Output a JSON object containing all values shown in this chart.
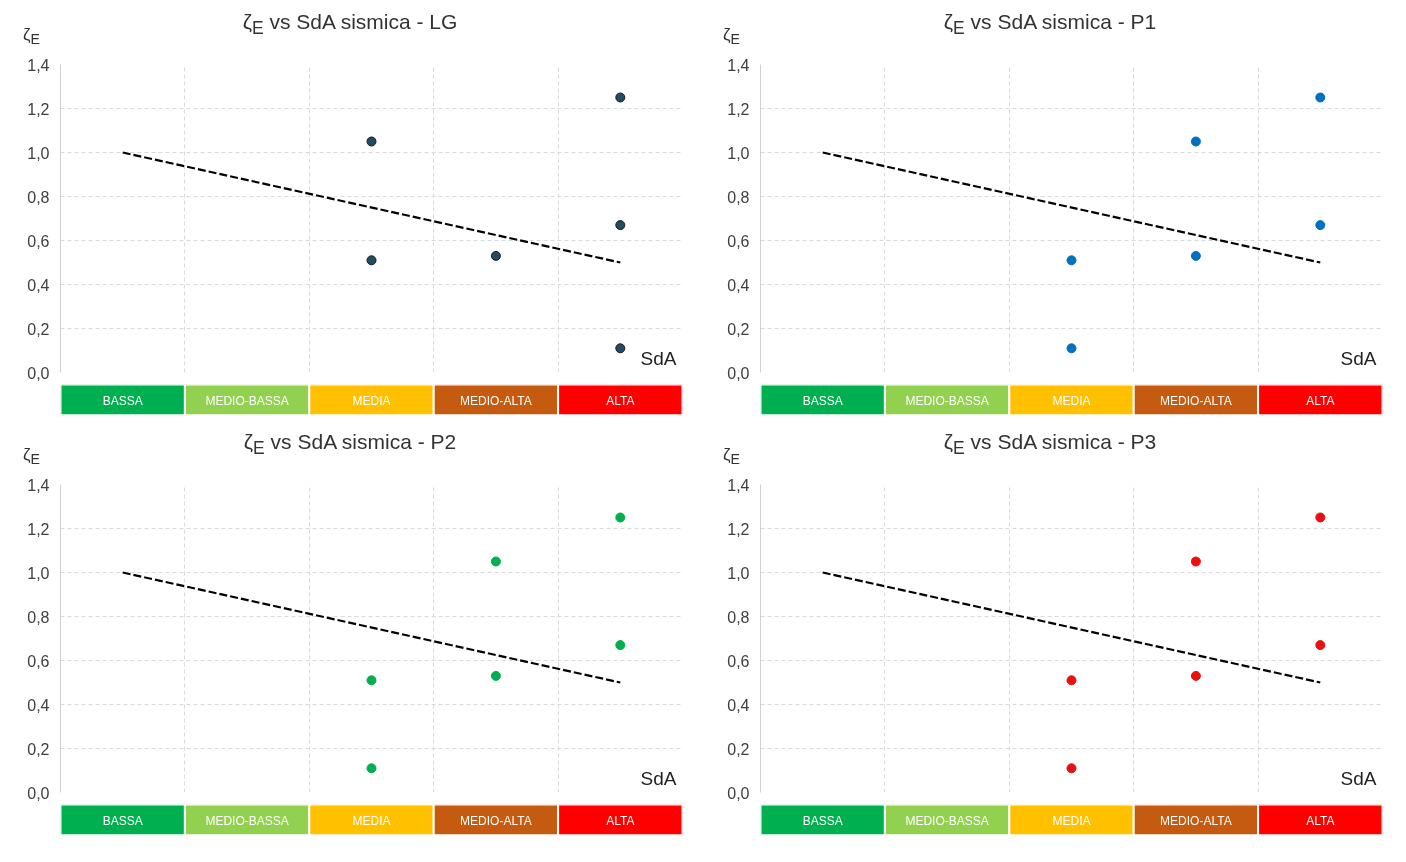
{
  "chart_data": [
    {
      "type": "scatter",
      "title": "ζ$_{E}$ vs SdA sismica - LG",
      "xlabel": "SdA",
      "ylabel": "ζ$_{E}$",
      "categories": [
        "BASSA",
        "MEDIO-BASSA",
        "MEDIA",
        "MEDIO-ALTA",
        "ALTA"
      ],
      "series": [
        {
          "color": "#1f4e63",
          "marker": "circle",
          "x": [
            "MEDIA",
            "MEDIA",
            "MEDIO-ALTA",
            "ALTA",
            "ALTA",
            "ALTA"
          ],
          "values": [
            1.05,
            0.51,
            0.53,
            1.25,
            0.67,
            0.11
          ]
        },
        {
          "type": "line",
          "color": "#000000",
          "marker": "none",
          "line_style": "dashed",
          "x": [
            "BASSA",
            "ALTA"
          ],
          "values": [
            1.0,
            0.5
          ]
        }
      ],
      "ylim": [
        0,
        1.4
      ],
      "yticks": [
        {
          "value": 0,
          "label": "0,0"
        },
        {
          "value": 0.2,
          "label": "0,2"
        },
        {
          "value": 0.4,
          "label": "0,4"
        },
        {
          "value": 0.6,
          "label": "0,6"
        },
        {
          "value": 0.8,
          "label": "0,8"
        },
        {
          "value": 1.0,
          "label": "1,0"
        },
        {
          "value": 1.2,
          "label": "1,2"
        },
        {
          "value": 1.4,
          "label": "1,4"
        }
      ],
      "grid": true
    },
    {
      "type": "scatter",
      "title": "ζ$_{E}$ vs SdA sismica - P1",
      "xlabel": "SdA",
      "ylabel": "ζ$_{E}$",
      "categories": [
        "BASSA",
        "MEDIO-BASSA",
        "MEDIA",
        "MEDIO-ALTA",
        "ALTA"
      ],
      "series": [
        {
          "color": "#0070c0",
          "marker": "circle",
          "x": [
            "MEDIA",
            "MEDIA",
            "MEDIO-ALTA",
            "MEDIO-ALTA",
            "ALTA",
            "ALTA"
          ],
          "values": [
            0.51,
            0.11,
            1.05,
            0.53,
            1.25,
            0.67
          ]
        },
        {
          "type": "line",
          "color": "#000000",
          "marker": "none",
          "line_style": "dashed",
          "x": [
            "BASSA",
            "ALTA"
          ],
          "values": [
            1.0,
            0.5
          ]
        }
      ],
      "ylim": [
        0,
        1.4
      ],
      "yticks": [
        {
          "value": 0,
          "label": "0,0"
        },
        {
          "value": 0.2,
          "label": "0,2"
        },
        {
          "value": 0.4,
          "label": "0,4"
        },
        {
          "value": 0.6,
          "label": "0,6"
        },
        {
          "value": 0.8,
          "label": "0,8"
        },
        {
          "value": 1.0,
          "label": "1,0"
        },
        {
          "value": 1.2,
          "label": "1,2"
        },
        {
          "value": 1.4,
          "label": "1,4"
        }
      ],
      "grid": true
    },
    {
      "type": "scatter",
      "title": "ζ$_{E}$ vs SdA sismica - P2",
      "xlabel": "SdA",
      "ylabel": "ζ$_{E}$",
      "categories": [
        "BASSA",
        "MEDIO-BASSA",
        "MEDIA",
        "MEDIO-ALTA",
        "ALTA"
      ],
      "series": [
        {
          "color": "#00b050",
          "marker": "circle",
          "x": [
            "MEDIA",
            "MEDIA",
            "MEDIO-ALTA",
            "MEDIO-ALTA",
            "ALTA",
            "ALTA"
          ],
          "values": [
            0.51,
            0.11,
            1.05,
            0.53,
            1.25,
            0.67
          ]
        },
        {
          "type": "line",
          "color": "#000000",
          "marker": "none",
          "line_style": "dashed",
          "x": [
            "BASSA",
            "ALTA"
          ],
          "values": [
            1.0,
            0.5
          ]
        }
      ],
      "ylim": [
        0,
        1.4
      ],
      "yticks": [
        {
          "value": 0,
          "label": "0,0"
        },
        {
          "value": 0.2,
          "label": "0,2"
        },
        {
          "value": 0.4,
          "label": "0,4"
        },
        {
          "value": 0.6,
          "label": "0,6"
        },
        {
          "value": 0.8,
          "label": "0,8"
        },
        {
          "value": 1.0,
          "label": "1,0"
        },
        {
          "value": 1.2,
          "label": "1,2"
        },
        {
          "value": 1.4,
          "label": "1,4"
        }
      ],
      "grid": true
    },
    {
      "type": "scatter",
      "title": "ζ$_{E}$ vs SdA sismica - P3",
      "xlabel": "SdA",
      "ylabel": "ζ$_{E}$",
      "categories": [
        "BASSA",
        "MEDIO-BASSA",
        "MEDIA",
        "MEDIO-ALTA",
        "ALTA"
      ],
      "series": [
        {
          "color": "#e81010",
          "marker": "circle",
          "x": [
            "MEDIA",
            "MEDIA",
            "MEDIO-ALTA",
            "MEDIO-ALTA",
            "ALTA",
            "ALTA"
          ],
          "values": [
            0.51,
            0.11,
            1.05,
            0.53,
            1.25,
            0.67
          ]
        },
        {
          "type": "line",
          "color": "#000000",
          "marker": "none",
          "line_style": "dashed",
          "x": [
            "BASSA",
            "ALTA"
          ],
          "values": [
            1.0,
            0.5
          ]
        }
      ],
      "ylim": [
        0,
        1.4
      ],
      "yticks": [
        {
          "value": 0,
          "label": "0,0"
        },
        {
          "value": 0.2,
          "label": "0,2"
        },
        {
          "value": 0.4,
          "label": "0,4"
        },
        {
          "value": 0.6,
          "label": "0,6"
        },
        {
          "value": 0.8,
          "label": "0,8"
        },
        {
          "value": 1.0,
          "label": "1,0"
        },
        {
          "value": 1.2,
          "label": "1,2"
        },
        {
          "value": 1.4,
          "label": "1,4"
        }
      ],
      "grid": true
    }
  ]
}
